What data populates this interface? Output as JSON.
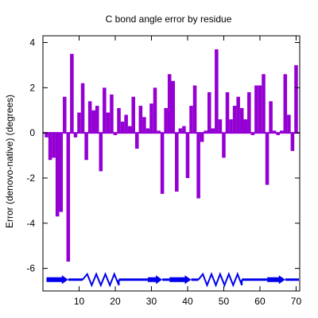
{
  "chart_data": {
    "type": "bar",
    "title": "C bond angle error by residue",
    "xlabel": "",
    "ylabel": "Error (denovo-native) (degrees)",
    "xlim": [
      0,
      71
    ],
    "ylim": [
      -7,
      4.3
    ],
    "x_ticks": [
      10,
      20,
      30,
      40,
      50,
      60,
      70
    ],
    "y_ticks": [
      4,
      2,
      0,
      -2,
      -4,
      -6
    ],
    "bar_color": "#9400d3",
    "zero_line_color": "#9400d3",
    "x": [
      1,
      2,
      3,
      4,
      5,
      6,
      7,
      8,
      9,
      10,
      11,
      12,
      13,
      14,
      15,
      16,
      17,
      18,
      19,
      20,
      21,
      22,
      23,
      24,
      25,
      26,
      27,
      28,
      29,
      30,
      31,
      32,
      33,
      34,
      35,
      36,
      37,
      38,
      39,
      40,
      41,
      42,
      43,
      44,
      45,
      46,
      47,
      48,
      49,
      50,
      51,
      52,
      53,
      54,
      55,
      56,
      57,
      58,
      59,
      60,
      61,
      62,
      63,
      64,
      65,
      66,
      67,
      68,
      69,
      70
    ],
    "values": [
      -0.2,
      -1.2,
      -1.1,
      -3.7,
      -3.5,
      1.6,
      -5.7,
      3.5,
      -0.2,
      0.9,
      2.2,
      -1.2,
      1.4,
      1.0,
      1.2,
      -1.7,
      2.0,
      0.9,
      1.7,
      -0.1,
      1.1,
      0.5,
      0.8,
      0.3,
      1.6,
      -0.7,
      1.2,
      0.7,
      0.2,
      1.3,
      2.0,
      0.1,
      -2.7,
      1.1,
      2.6,
      2.3,
      -2.6,
      0.2,
      0.3,
      -2.0,
      1.2,
      2.1,
      -2.9,
      -0.4,
      0.1,
      1.8,
      0.2,
      3.7,
      0.6,
      -1.1,
      1.8,
      0.6,
      1.2,
      1.6,
      1.1,
      0.6,
      1.8,
      -0.1,
      2.1,
      2.1,
      2.6,
      -2.3,
      1.4,
      0.1,
      -0.1,
      0.1,
      2.6,
      0.8,
      -0.8,
      3.0
    ],
    "secondary_structure": {
      "color": "#0000ee",
      "y": -6.5,
      "elements": [
        {
          "type": "strand",
          "start": 1,
          "end": 7
        },
        {
          "type": "coil",
          "start": 7,
          "end": 11
        },
        {
          "type": "helix",
          "start": 11,
          "end": 21
        },
        {
          "type": "coil",
          "start": 21,
          "end": 29
        },
        {
          "type": "strand",
          "start": 29,
          "end": 33
        },
        {
          "type": "coil",
          "start": 33,
          "end": 35
        },
        {
          "type": "strand",
          "start": 35,
          "end": 41
        },
        {
          "type": "coil",
          "start": 41,
          "end": 43
        },
        {
          "type": "helix",
          "start": 43,
          "end": 55
        },
        {
          "type": "coil",
          "start": 55,
          "end": 62
        },
        {
          "type": "strand",
          "start": 62,
          "end": 67
        },
        {
          "type": "coil",
          "start": 67,
          "end": 71
        }
      ]
    }
  }
}
